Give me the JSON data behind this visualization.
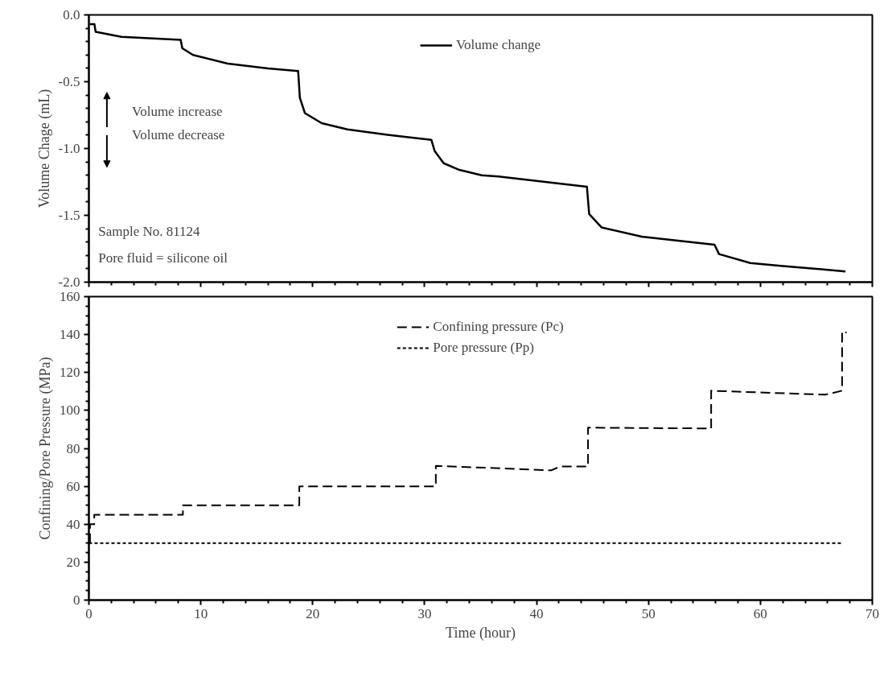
{
  "chart_data": [
    {
      "type": "line",
      "ylabel": "Volume Chage (mL)",
      "xlim": [
        0,
        70
      ],
      "xticks": [
        0,
        10,
        20,
        30,
        40,
        50,
        60,
        70
      ],
      "ylim": [
        -2.0,
        0.0
      ],
      "yticks": [
        {
          "value": -2.0,
          "label": "-2.0"
        },
        {
          "value": -1.5,
          "label": "-1.5"
        },
        {
          "value": -1.0,
          "label": "-1.0"
        },
        {
          "value": -0.5,
          "label": "-0.5"
        },
        {
          "value": 0.0,
          "label": "0.0"
        }
      ],
      "tick_labels": "y",
      "legend": "top",
      "line_style": "solid",
      "annotations": [
        "Volume increase",
        "Volume decrease",
        "Sample No. 81124",
        "Pore fluid = silicone oil"
      ],
      "series": [
        {
          "name": "Volume change",
          "color": "#000000",
          "x": [
            0.1,
            0.5,
            0.6,
            2.9,
            8.2,
            8.35,
            9.3,
            12.4,
            16.0,
            18.7,
            18.85,
            19.3,
            20.8,
            23.1,
            26.7,
            30.6,
            30.9,
            31.7,
            33.1,
            35.1,
            36.6,
            44.5,
            44.7,
            45.8,
            49.4,
            55.9,
            56.3,
            59.1,
            62.0,
            65.0,
            67.6
          ],
          "values": [
            -0.07,
            -0.07,
            -0.126,
            -0.164,
            -0.187,
            -0.25,
            -0.3,
            -0.364,
            -0.4,
            -0.42,
            -0.62,
            -0.735,
            -0.81,
            -0.857,
            -0.897,
            -0.935,
            -1.02,
            -1.11,
            -1.16,
            -1.2,
            -1.21,
            -1.286,
            -1.49,
            -1.59,
            -1.66,
            -1.72,
            -1.79,
            -1.857,
            -1.88,
            -1.9,
            -1.92
          ]
        }
      ]
    },
    {
      "type": "line",
      "xlabel": "Time (hour)",
      "ylabel": "Confining/Pore Pressure (MPa)",
      "xlim": [
        0,
        70
      ],
      "xticks": [
        0,
        10,
        20,
        30,
        40,
        50,
        60,
        70
      ],
      "ylim": [
        0,
        160
      ],
      "yticks": [
        0,
        20,
        40,
        60,
        80,
        100,
        120,
        140,
        160
      ],
      "legend": "top",
      "series": [
        {
          "name": "Confining pressure (Pc)",
          "color": "#000000",
          "line_style": "dashed",
          "x": [
            0.1,
            0.1,
            0.48,
            0.48,
            8.4,
            8.4,
            18.8,
            18.8,
            31.0,
            31.0,
            41.3,
            42.1,
            44.6,
            44.6,
            55.6,
            55.6,
            65.8,
            67.3,
            67.3,
            67.7
          ],
          "values": [
            30,
            40,
            40,
            45,
            45,
            50,
            50,
            60,
            60,
            70.8,
            68.4,
            70.4,
            70.4,
            90.9,
            90.5,
            110.4,
            108.3,
            110.4,
            141.7,
            141
          ]
        },
        {
          "name": "Pore pressure (Pp)",
          "color": "#000000",
          "line_style": "dotted",
          "x": [
            0.0,
            67.4
          ],
          "values": [
            30,
            30
          ]
        }
      ]
    }
  ]
}
